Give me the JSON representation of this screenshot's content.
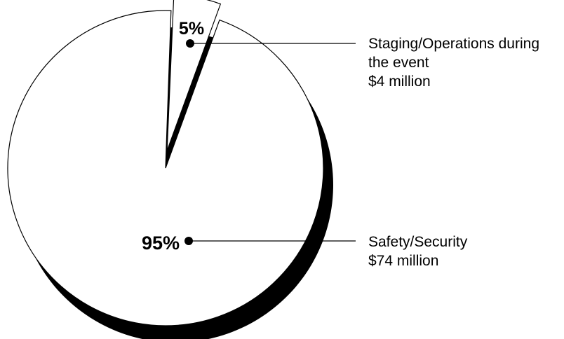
{
  "chart_data": {
    "type": "pie",
    "slices": [
      {
        "percent_label": "95%",
        "value": 95,
        "label_lines": [
          "Safety/Security",
          "$74 million"
        ]
      },
      {
        "percent_label": "5%",
        "value": 5,
        "label_lines": [
          "Staging/Operations during",
          "the event",
          "$4 million"
        ]
      }
    ],
    "colors": {
      "fill": "#ffffff",
      "stroke": "#000000",
      "shadow": "#000000"
    }
  }
}
